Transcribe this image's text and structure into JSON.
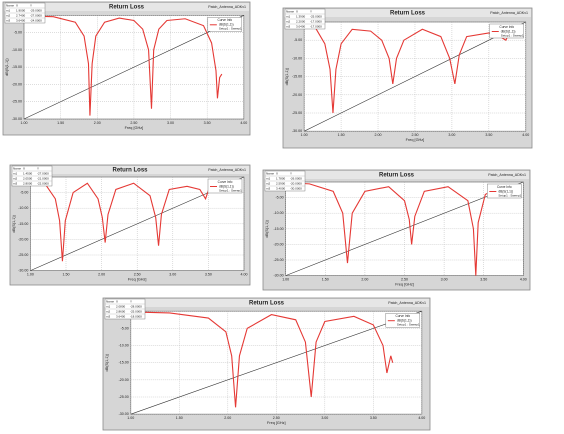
{
  "chart_data": [
    {
      "type": "line",
      "title": "Return Loss",
      "subtitle": "Patch_Antenna_ADKv1",
      "xlabel": "Freq [GHz]",
      "ylabel": "dB(S(1,1))",
      "grid": true,
      "xlim": [
        1,
        4
      ],
      "xticks": [
        {
          "value": 1,
          "label": "1.00"
        },
        {
          "value": 1.5,
          "label": "1.50"
        },
        {
          "value": 2,
          "label": "2.00"
        },
        {
          "value": 2.5,
          "label": "2.50"
        },
        {
          "value": 3,
          "label": "3.00"
        },
        {
          "value": 3.5,
          "label": "3.50"
        },
        {
          "value": 4,
          "label": "4.00"
        }
      ],
      "ylim": [
        -30,
        0
      ],
      "yticks": [
        {
          "value": 0,
          "label": "0.00"
        },
        {
          "value": -5,
          "label": "-5.00"
        },
        {
          "value": -10,
          "label": "-10.00"
        },
        {
          "value": -15,
          "label": "-15.00"
        },
        {
          "value": -20,
          "label": "-20.00"
        },
        {
          "value": -25,
          "label": "-25.00"
        },
        {
          "value": -30,
          "label": "-30.00"
        }
      ],
      "legend_title": "Curve Info",
      "legend_subtitle": "Setup1 : Sweep1",
      "markers": {
        "header": [
          "Name",
          "X",
          "Y"
        ],
        "rows": [
          [
            "m1",
            "1.9000",
            "-29.0000"
          ],
          [
            "m2",
            "2.7400",
            "-27.0000"
          ],
          [
            "m3",
            "3.6400",
            "-24.0000"
          ]
        ]
      },
      "x": [
        1,
        1.4,
        1.7,
        1.82,
        1.88,
        1.9,
        1.93,
        1.98,
        2.1,
        2.3,
        2.5,
        2.62,
        2.7,
        2.74,
        2.77,
        2.84,
        2.95,
        3.2,
        3.45,
        3.56,
        3.62,
        3.64,
        3.67,
        3.7
      ],
      "series": [
        {
          "name": "dB(S(1,1))",
          "color": "#e53935",
          "values": [
            -0.2,
            -0.4,
            -2,
            -6,
            -14,
            -29,
            -14,
            -6,
            -2,
            -0.8,
            -1.5,
            -4,
            -10,
            -27,
            -10,
            -4,
            -1.5,
            -1,
            -3,
            -8,
            -16,
            -24,
            -18,
            -17
          ]
        }
      ],
      "reference_line": {
        "x": [
          1,
          4
        ],
        "values": [
          -30,
          0
        ],
        "color": "#333333"
      }
    },
    {
      "type": "line",
      "title": "Return Loss",
      "subtitle": "Patch_Antenna_ADKv1",
      "xlabel": "Freq [GHz]",
      "ylabel": "dB(S(1,1))",
      "grid": true,
      "xlim": [
        1,
        4
      ],
      "xticks": [
        {
          "value": 1,
          "label": "1.00"
        },
        {
          "value": 1.5,
          "label": "1.50"
        },
        {
          "value": 2,
          "label": "2.00"
        },
        {
          "value": 2.5,
          "label": "2.50"
        },
        {
          "value": 3,
          "label": "3.00"
        },
        {
          "value": 3.5,
          "label": "3.50"
        },
        {
          "value": 4,
          "label": "4.00"
        }
      ],
      "ylim": [
        -30,
        0
      ],
      "yticks": [
        {
          "value": 0,
          "label": "0.00"
        },
        {
          "value": -5,
          "label": "-5.00"
        },
        {
          "value": -10,
          "label": "-10.00"
        },
        {
          "value": -15,
          "label": "-15.00"
        },
        {
          "value": -20,
          "label": "-20.00"
        },
        {
          "value": -25,
          "label": "-25.00"
        },
        {
          "value": -30,
          "label": "-30.00"
        }
      ],
      "legend_title": "Curve Info",
      "legend_subtitle": "Setup1 : Sweep1",
      "markers": {
        "header": [
          "Name",
          "X",
          "Y"
        ],
        "rows": [
          [
            "m1",
            "1.3900",
            "-25.0000"
          ],
          [
            "m2",
            "2.2000",
            "-17.0000"
          ],
          [
            "m3",
            "3.0400",
            "-17.0000"
          ]
        ]
      },
      "x": [
        1,
        1.15,
        1.28,
        1.35,
        1.39,
        1.43,
        1.5,
        1.65,
        1.9,
        2.05,
        2.15,
        2.2,
        2.25,
        2.35,
        2.6,
        2.85,
        2.97,
        3.04,
        3.1,
        3.2,
        3.5,
        3.65,
        3.73,
        3.8,
        3.9
      ],
      "series": [
        {
          "name": "dB(S(1,1))",
          "color": "#e53935",
          "values": [
            -0.3,
            -1.5,
            -6,
            -13,
            -25,
            -13,
            -6,
            -2,
            -2.5,
            -5,
            -10,
            -17,
            -10,
            -5,
            -2,
            -4,
            -10,
            -17,
            -9,
            -4,
            -3,
            -4,
            -5,
            -2,
            -1
          ]
        }
      ],
      "reference_line": {
        "x": [
          1,
          4
        ],
        "values": [
          -30,
          0
        ],
        "color": "#333333"
      }
    },
    {
      "type": "line",
      "title": "Return Loss",
      "subtitle": "Patch_Antenna_ADKv1",
      "xlabel": "Freq [GHz]",
      "ylabel": "dB(S(1,1))",
      "grid": true,
      "xlim": [
        1,
        4
      ],
      "xticks": [
        {
          "value": 1,
          "label": "1.00"
        },
        {
          "value": 1.5,
          "label": "1.50"
        },
        {
          "value": 2,
          "label": "2.00"
        },
        {
          "value": 2.5,
          "label": "2.50"
        },
        {
          "value": 3,
          "label": "3.00"
        },
        {
          "value": 3.5,
          "label": "3.50"
        },
        {
          "value": 4,
          "label": "4.00"
        }
      ],
      "ylim": [
        -30,
        0
      ],
      "yticks": [
        {
          "value": 0,
          "label": "0.00"
        },
        {
          "value": -5,
          "label": "-5.00"
        },
        {
          "value": -10,
          "label": "-10.00"
        },
        {
          "value": -15,
          "label": "-15.00"
        },
        {
          "value": -20,
          "label": "-20.00"
        },
        {
          "value": -25,
          "label": "-25.00"
        },
        {
          "value": -30,
          "label": "-30.00"
        }
      ],
      "legend_title": "Curve Info",
      "legend_subtitle": "Setup1 : Sweep1",
      "markers": {
        "header": [
          "Name",
          "X",
          "Y"
        ],
        "rows": [
          [
            "m1",
            "1.4500",
            "-27.0000"
          ],
          [
            "m2",
            "2.0500",
            "-21.0000"
          ],
          [
            "m3",
            "2.8000",
            "-22.0000"
          ]
        ]
      },
      "x": [
        1,
        1.2,
        1.35,
        1.41,
        1.45,
        1.49,
        1.6,
        1.8,
        1.95,
        2.01,
        2.05,
        2.09,
        2.2,
        2.45,
        2.68,
        2.76,
        2.8,
        2.84,
        2.95,
        3.2,
        3.38,
        3.46,
        3.52,
        3.64
      ],
      "series": [
        {
          "name": "dB(S(1,1))",
          "color": "#e53935",
          "values": [
            -0.3,
            -2,
            -7,
            -14,
            -27,
            -14,
            -5,
            -2,
            -7,
            -13,
            -21,
            -12,
            -4,
            -2,
            -6,
            -13,
            -22,
            -12,
            -4,
            -3,
            -4,
            -7,
            -3,
            -2
          ]
        }
      ],
      "reference_line": {
        "x": [
          1,
          4
        ],
        "values": [
          -30,
          0
        ],
        "color": "#333333"
      }
    },
    {
      "type": "line",
      "title": "Return Loss",
      "subtitle": "Patch_Antenna_ADKv1",
      "xlabel": "Freq [GHz]",
      "ylabel": "dB(S(1,1))",
      "grid": true,
      "xlim": [
        1,
        4
      ],
      "xticks": [
        {
          "value": 1,
          "label": "1.00"
        },
        {
          "value": 1.5,
          "label": "1.50"
        },
        {
          "value": 2,
          "label": "2.00"
        },
        {
          "value": 2.5,
          "label": "2.50"
        },
        {
          "value": 3,
          "label": "3.00"
        },
        {
          "value": 3.5,
          "label": "3.50"
        },
        {
          "value": 4,
          "label": "4.00"
        }
      ],
      "ylim": [
        -30,
        0
      ],
      "yticks": [
        {
          "value": 0,
          "label": "0.00"
        },
        {
          "value": -5,
          "label": "-5.00"
        },
        {
          "value": -10,
          "label": "-10.00"
        },
        {
          "value": -15,
          "label": "-15.00"
        },
        {
          "value": -20,
          "label": "-20.00"
        },
        {
          "value": -25,
          "label": "-25.00"
        },
        {
          "value": -30,
          "label": "-30.00"
        }
      ],
      "legend_title": "Curve Info",
      "legend_subtitle": "Setup1 : Sweep1",
      "markers": {
        "header": [
          "Name",
          "X",
          "Y"
        ],
        "rows": [
          [
            "m1",
            "1.7800",
            "-26.0000"
          ],
          [
            "m2",
            "2.5900",
            "-20.0000"
          ],
          [
            "m3",
            "3.4000",
            "-30.0000"
          ]
        ]
      },
      "x": [
        1,
        1.3,
        1.6,
        1.72,
        1.78,
        1.84,
        2.0,
        2.3,
        2.5,
        2.56,
        2.59,
        2.63,
        2.75,
        3.05,
        3.3,
        3.37,
        3.4,
        3.43,
        3.52,
        3.7
      ],
      "series": [
        {
          "name": "dB(S(1,1))",
          "color": "#e53935",
          "values": [
            -0.2,
            -0.6,
            -3,
            -10,
            -26,
            -10,
            -3,
            -1.5,
            -6,
            -12,
            -20,
            -11,
            -3,
            -1.5,
            -6,
            -15,
            -30,
            -13,
            -4,
            -1.5
          ]
        }
      ],
      "reference_line": {
        "x": [
          1,
          4
        ],
        "values": [
          -30,
          0
        ],
        "color": "#333333"
      }
    },
    {
      "type": "line",
      "title": "Return Loss",
      "subtitle": "Patch_Antenna_ADKv1",
      "xlabel": "Freq [GHz]",
      "ylabel": "dB(S(1,1))",
      "grid": true,
      "xlim": [
        1,
        4
      ],
      "xticks": [
        {
          "value": 1,
          "label": "1.00"
        },
        {
          "value": 1.5,
          "label": "1.50"
        },
        {
          "value": 2,
          "label": "2.00"
        },
        {
          "value": 2.5,
          "label": "2.50"
        },
        {
          "value": 3,
          "label": "3.00"
        },
        {
          "value": 3.5,
          "label": "3.50"
        },
        {
          "value": 4,
          "label": "4.00"
        }
      ],
      "ylim": [
        -30,
        0
      ],
      "yticks": [
        {
          "value": 0,
          "label": "0.00"
        },
        {
          "value": -5,
          "label": "-5.00"
        },
        {
          "value": -10,
          "label": "-10.00"
        },
        {
          "value": -15,
          "label": "-15.00"
        },
        {
          "value": -20,
          "label": "-20.00"
        },
        {
          "value": -25,
          "label": "-25.00"
        },
        {
          "value": -30,
          "label": "-30.00"
        }
      ],
      "legend_title": "Curve Info",
      "legend_subtitle": "Setup1 : Sweep1",
      "markers": {
        "header": [
          "Name",
          "X",
          "Y"
        ],
        "rows": [
          [
            "m1",
            "2.0800",
            "-28.0000"
          ],
          [
            "m2",
            "2.8600",
            "-25.0000"
          ],
          [
            "m3",
            "3.6400",
            "-18.0000"
          ]
        ]
      },
      "x": [
        1,
        1.4,
        1.8,
        1.98,
        2.04,
        2.08,
        2.12,
        2.2,
        2.45,
        2.7,
        2.8,
        2.86,
        2.91,
        3.0,
        3.3,
        3.5,
        3.6,
        3.64,
        3.68,
        3.7
      ],
      "series": [
        {
          "name": "dB(S(1,1))",
          "color": "#e53935",
          "values": [
            -0.2,
            -0.5,
            -2,
            -6,
            -13,
            -28,
            -13,
            -5,
            -1,
            -2.5,
            -9,
            -25,
            -9,
            -3,
            -1.5,
            -4,
            -10,
            -18,
            -13,
            -15
          ]
        }
      ],
      "reference_line": {
        "x": [
          1,
          4
        ],
        "values": [
          -30,
          0
        ],
        "color": "#333333"
      }
    }
  ]
}
